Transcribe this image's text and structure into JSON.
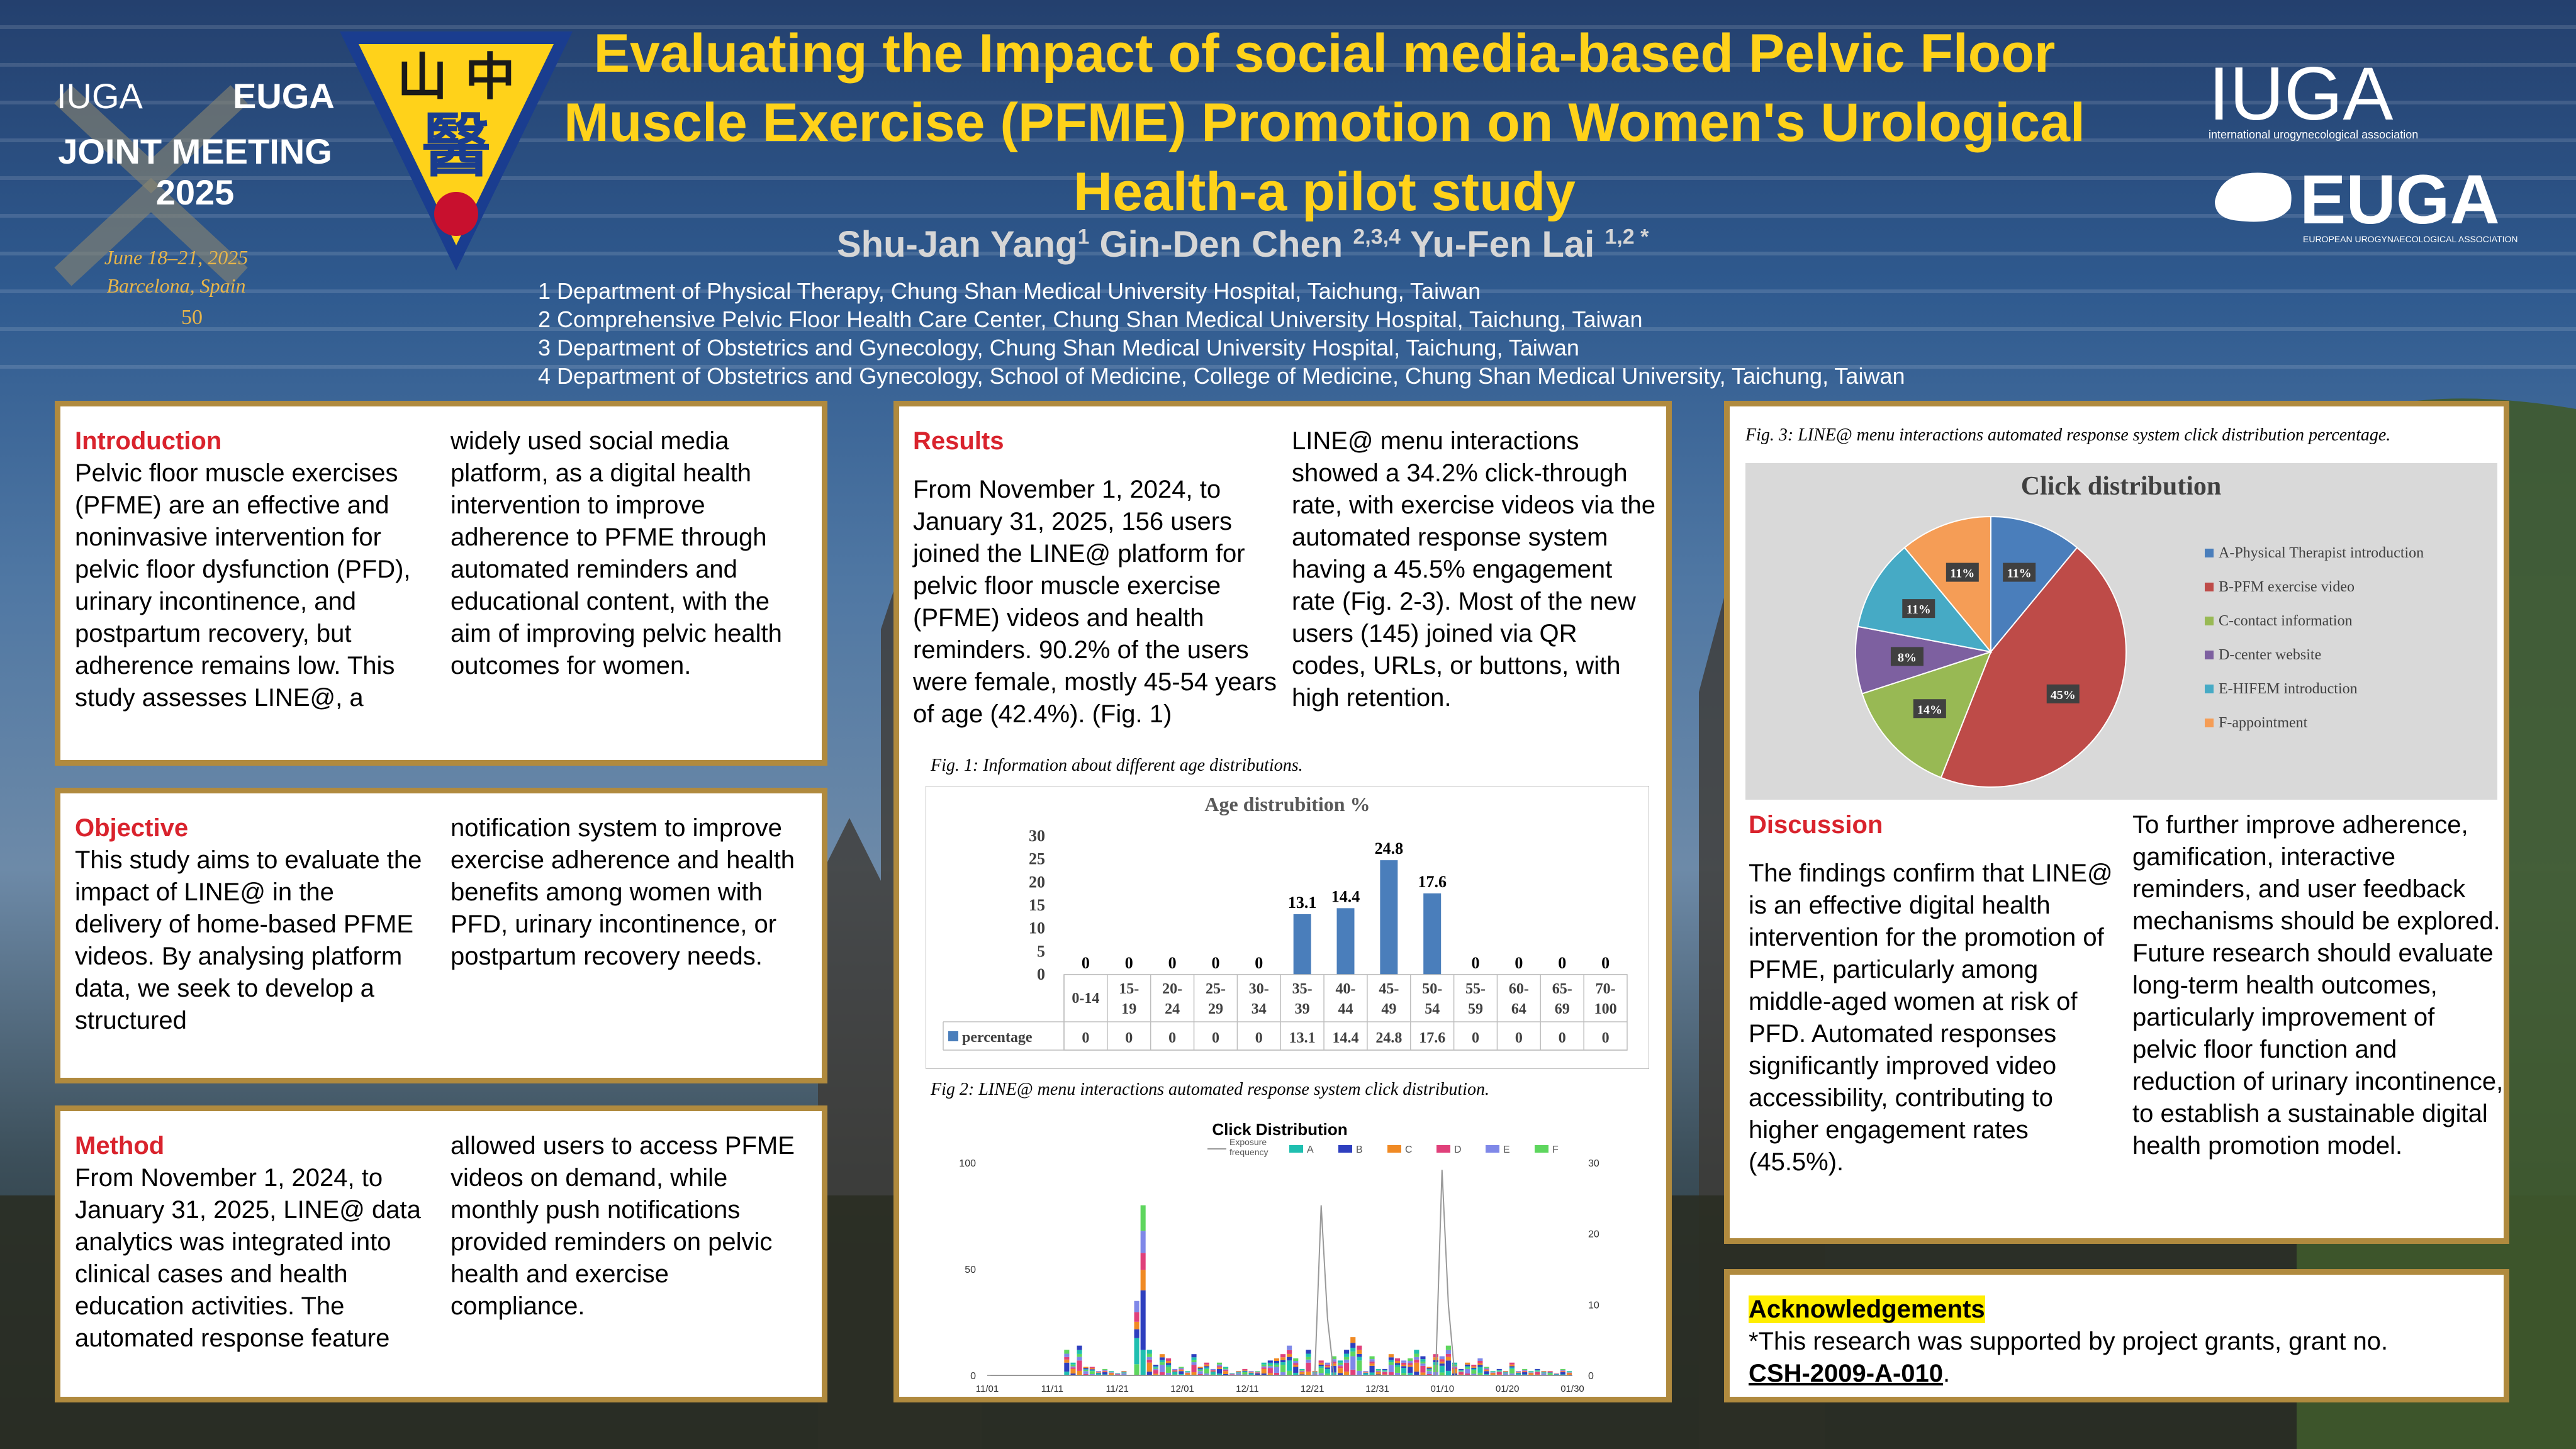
{
  "header": {
    "title": "Evaluating the Impact of social media-based Pelvic Floor Muscle Exercise (PFME) Promotion on Women's Urological Health-a pilot study",
    "authors": [
      {
        "name": "Shu-Jan Yang",
        "sup": "1"
      },
      {
        "name": "Gin-Den Chen",
        "sup": "2,3,4"
      },
      {
        "name": "Yu-Fen Lai",
        "sup": "1,2 *"
      }
    ],
    "affiliations": [
      "1 Department of Physical Therapy, Chung Shan Medical University Hospital, Taichung, Taiwan",
      "2 Comprehensive Pelvic Floor Health Care Center, Chung Shan Medical University Hospital, Taichung, Taiwan",
      "3 Department of Obstetrics and Gynecology, Chung Shan Medical University Hospital, Taichung, Taiwan",
      "4 Department of Obstetrics and Gynecology, School of Medicine, College of Medicine, Chung Shan Medical University, Taichung, Taiwan"
    ]
  },
  "logo_left": {
    "brand1": "IUGA",
    "brand2": "EUGA",
    "line1": "JOINT MEETING",
    "line2": "2025",
    "date": "June 18–21, 2025",
    "place": "Barcelona, Spain",
    "annual": "50"
  },
  "emblem": {
    "chars": "山 中",
    "main": "醫"
  },
  "logo_right": {
    "iuga": "IUGA",
    "iuga_sub": "international urogynecological association",
    "euga": "EUGA",
    "euga_sub": "EUROPEAN UROGYNAECOLOGICAL ASSOCIATION"
  },
  "introduction": {
    "heading": "Introduction",
    "col1": "Pelvic floor muscle exercises (PFME) are an effective and noninvasive intervention for pelvic floor dysfunction (PFD), urinary incontinence, and postpartum recovery, but adherence remains low. This study assesses LINE@, a",
    "col2": "widely used social media platform, as a digital health intervention to improve adherence to PFME through automated reminders and educational content, with the aim of improving pelvic health outcomes for women."
  },
  "objective": {
    "heading": "Objective",
    "col1": "This study aims to evaluate the impact of LINE@ in the delivery of home-based PFME videos. By analysing platform data, we seek to develop a structured",
    "col2": "notification system to improve exercise adherence and health benefits among women with PFD, urinary incontinence, or postpartum recovery needs."
  },
  "method": {
    "heading": "Method",
    "col1": "From November 1, 2024, to January 31, 2025, LINE@ data analytics was integrated into clinical cases and health education activities. The automated response feature",
    "col2": "allowed users to access PFME videos on demand, while monthly push notifications provided reminders on pelvic health and exercise compliance."
  },
  "results": {
    "heading": "Results",
    "col1": "From November 1, 2024, to January 31, 2025, 156 users joined the LINE@ platform for pelvic floor muscle exercise (PFME) videos and health reminders. 90.2% of the users were female, mostly 45-54 years of age (42.4%). (Fig. 1)",
    "col2": "LINE@ menu interactions showed a 34.2% click-through rate, with exercise videos via the automated response system having a 45.5% engagement rate (Fig. 2-3). Most of the new users (145) joined via QR codes, URLs, or buttons, with high retention.",
    "fig1_caption": "Fig. 1: Information about different age distributions.",
    "fig2_caption": "Fig 2: LINE@ menu interactions automated response system click distribution."
  },
  "discussion": {
    "heading": "Discussion",
    "col1": "The findings confirm that LINE@ is an effective digital health intervention for the promotion of PFME, particularly among middle-aged women at risk of PFD. Automated responses significantly improved video accessibility, contributing to higher engagement rates (45.5%).",
    "col2": "To further improve adherence, gamification, interactive reminders, and user feedback mechanisms should be explored. Future research should evaluate long-term health outcomes, particularly improvement of pelvic floor function and reduction of urinary incontinence, to establish a sustainable digital health promotion model.",
    "fig3_caption": "Fig. 3: LINE@ menu interactions automated response system click distribution percentage."
  },
  "acknowledgements": {
    "heading": "Acknowledgements",
    "text": "*This research was supported by project grants, grant no.",
    "grant": "CSH-2009-A-010",
    "period": "."
  },
  "colors": {
    "gold": "#ffd21a",
    "frame": "#b08a3e",
    "heading_red": "#d9232d",
    "bar_blue": "#4a7ebb"
  },
  "chart_data": [
    {
      "type": "table",
      "title": "Age distrubition %",
      "categories": [
        "0-14",
        "15-19",
        "20-24",
        "25-29",
        "30-34",
        "35-39",
        "40-44",
        "45-49",
        "50-54",
        "55-59",
        "60-64",
        "65-69",
        "70-100"
      ],
      "series": [
        {
          "name": "percentage",
          "values": [
            0,
            0,
            0,
            0,
            0,
            13.1,
            14.4,
            24.8,
            17.6,
            0,
            0,
            0,
            0
          ]
        }
      ],
      "yticks": [
        0,
        5,
        10,
        15,
        20,
        25,
        30
      ],
      "ylim": [
        0,
        30
      ],
      "legend": "bottom (data table)"
    },
    {
      "type": "bar",
      "title": "Click Distribution",
      "legend_items": [
        "Exposure frequency",
        "A",
        "B",
        "C",
        "D",
        "E",
        "F"
      ],
      "legend_colors": [
        "#999999",
        "#1fbfb0",
        "#2e3fbf",
        "#f08a24",
        "#e0407a",
        "#7f88e8",
        "#5ed65e"
      ],
      "x_ticks": [
        "11/01",
        "11/11",
        "11/21",
        "12/01",
        "12/11",
        "12/21",
        "12/31",
        "01/10",
        "01/20",
        "01/30"
      ],
      "y_left_ticks": [
        0,
        50,
        100
      ],
      "y_right_ticks": [
        0,
        10,
        20,
        30
      ],
      "ylim_left": [
        0,
        100
      ],
      "ylim_right": [
        0,
        30
      ],
      "stacked_totals": [
        0,
        0,
        0,
        0,
        0,
        0,
        0,
        0,
        0,
        0,
        0,
        0,
        12,
        6,
        14,
        4,
        4,
        2,
        3,
        2,
        1,
        2,
        0,
        35,
        80,
        12,
        5,
        10,
        8,
        3,
        4,
        2,
        10,
        4,
        6,
        3,
        6,
        4,
        1,
        2,
        3,
        2,
        2,
        6,
        7,
        8,
        10,
        14,
        8,
        3,
        12,
        2,
        7,
        6,
        9,
        7,
        12,
        18,
        14,
        2,
        9,
        3,
        3,
        10,
        8,
        7,
        8,
        12,
        9,
        4,
        10,
        9,
        14,
        6,
        3,
        6,
        5,
        8,
        4,
        2,
        3,
        2,
        6,
        2,
        3,
        2,
        3,
        2,
        2,
        1,
        3,
        2
      ],
      "exposure": [
        0,
        0,
        0,
        0,
        0,
        0,
        0,
        0,
        0,
        0,
        0,
        0,
        0,
        0,
        0,
        0,
        0,
        0,
        0,
        0,
        0,
        0,
        0,
        0,
        0,
        0,
        0,
        0,
        0,
        0,
        0,
        0,
        0,
        0,
        0,
        0,
        0,
        0,
        0,
        0,
        0,
        0,
        0,
        0,
        0,
        0,
        0,
        0,
        0,
        0,
        0,
        0,
        24,
        8,
        0,
        0,
        0,
        0,
        0,
        0,
        0,
        0,
        0,
        0,
        0,
        0,
        0,
        0,
        0,
        0,
        0,
        29,
        10,
        0,
        0,
        0,
        0,
        0,
        0,
        0,
        0,
        0,
        0,
        0,
        0,
        0,
        0,
        0,
        0,
        0,
        0,
        0
      ]
    },
    {
      "type": "pie",
      "title": "Click distribution",
      "labels": [
        "A-Physical Therapist introduction",
        "B-PFM exercise video",
        "C-contact information",
        "D-center website",
        "E-HIFEM introduction",
        "F-appointment"
      ],
      "values": [
        11,
        45,
        14,
        8,
        11,
        11
      ],
      "colors": [
        "#4a7ebb",
        "#be4b48",
        "#98b954",
        "#7d60a0",
        "#46aac5",
        "#f59d56"
      ],
      "data_labels": [
        "11%",
        "45%",
        "14%",
        "8%",
        "11%",
        "11%"
      ]
    }
  ]
}
